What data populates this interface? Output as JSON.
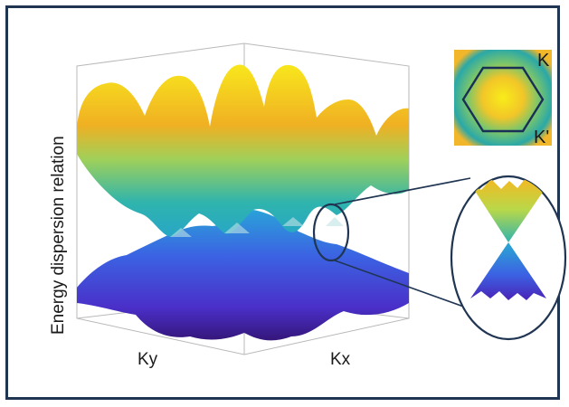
{
  "figure": {
    "y_axis_title": "Energy dispersion relation",
    "x_axis_left_label": "Ky",
    "x_axis_right_label": "Kx",
    "inset_labels": {
      "k_point": "K",
      "k_prime_point": "K'"
    },
    "colors": {
      "frame": "#1f3552",
      "band_top": "#f6e21a",
      "band_mid": "#2fb4ad",
      "band_low": "#3b63e3",
      "band_bottom": "#3f1fa0",
      "zoom_ring": "#1f3552"
    }
  }
}
